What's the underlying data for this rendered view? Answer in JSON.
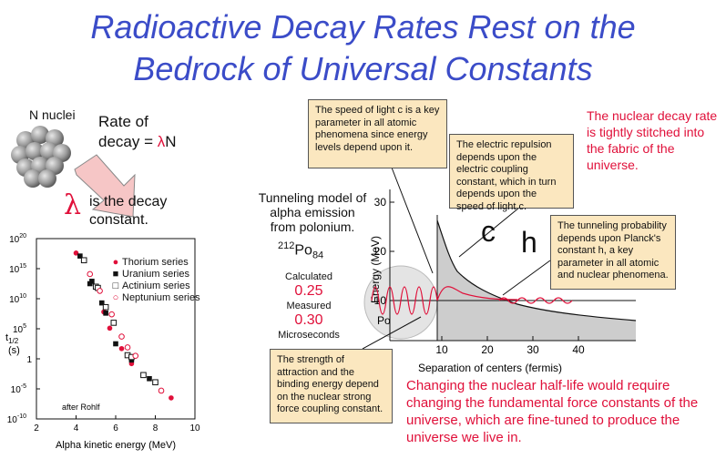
{
  "title_line1": "Radioactive Decay Rates Rest on the",
  "title_line2": "Bedrock  of Universal Constants",
  "nuclei_label": "N nuclei",
  "rate_line1": "Rate of",
  "rate_line2_prefix": "decay = ",
  "rate_lambda": "λ",
  "rate_N": "N",
  "lambda_symbol": "λ",
  "lambda_text_line1": "is the decay",
  "lambda_text_line2": "constant.",
  "box_light": "The speed of light c is a key parameter in all atomic phenomena since energy levels depend upon it.",
  "box_electric": "The electric repulsion depends upon the electric coupling constant, which in turn depends upon the speed of light c.",
  "box_planck": "The tunneling probability depends upon Planck's constant h, a key parameter in all atomic and nuclear phenomena.",
  "box_strong": "The strength of attraction and the binding energy depend on the nuclear strong force coupling constant.",
  "nuclear_rate_text": "The nuclear decay rate is tightly stitched into the fabric of the universe.",
  "bottom_text": "Changing the nuclear half-life would require changing the fundamental force constants of the universe, which are fine-tuned to produce the universe we live in.",
  "tunneling_title_line1": "Tunneling model of",
  "tunneling_title_line2": "alpha emission",
  "tunneling_title_line3": "from polonium.",
  "po_mass": "212",
  "po_symbol": "Po",
  "po_z": "84",
  "calculated_label": "Calculated",
  "calculated_value": "0.25",
  "measured_label": "Measured",
  "measured_value": "0.30",
  "microseconds_label": "Microseconds",
  "letter_c": "c",
  "letter_h": "h",
  "po_circle_label": "Po",
  "colors": {
    "title_blue": "#3b4cc8",
    "red": "#e0103a",
    "box_fill": "#fbe7bf",
    "shade_gray": "#c8c8c8"
  },
  "energy_chart": {
    "ylabel": "Energy (MeV)",
    "xlabel": "Separation of centers (fermis)",
    "x_ticks": [
      "10",
      "20",
      "30",
      "40"
    ],
    "y_ticks": [
      "10",
      "20",
      "30"
    ],
    "alpha_energy_line": "10"
  },
  "chart_data": {
    "type": "scatter",
    "title": "",
    "xlabel": "Alpha kinetic energy (MeV)",
    "ylabel_main": "t",
    "ylabel_sub": "1/2",
    "ylabel_unit": "(s)",
    "xlim": [
      2,
      10
    ],
    "ylim_log10": [
      -10,
      20
    ],
    "x_ticks": [
      "2",
      "4",
      "6",
      "8",
      "10"
    ],
    "y_ticks": [
      {
        "base": "10",
        "exp": "20",
        "log": 20
      },
      {
        "base": "10",
        "exp": "15",
        "log": 15
      },
      {
        "base": "10",
        "exp": "10",
        "log": 10
      },
      {
        "base": "10",
        "exp": "5",
        "log": 5
      },
      {
        "base": "1",
        "exp": "",
        "log": 0
      },
      {
        "base": "10",
        "exp": "-5",
        "log": -5
      },
      {
        "base": "10",
        "exp": "-10",
        "log": -10
      }
    ],
    "annotation": "after Rohlf",
    "legend_position": "top-right",
    "series": [
      {
        "name": "Thorium series",
        "marker": "filled-circle",
        "color": "#e0103a",
        "points": [
          [
            4.0,
            17.6
          ],
          [
            5.4,
            7.8
          ],
          [
            5.7,
            5.1
          ],
          [
            6.3,
            1.7
          ],
          [
            6.8,
            -0.8
          ],
          [
            8.8,
            -6.5
          ]
        ]
      },
      {
        "name": "Uranium series",
        "marker": "filled-square",
        "color": "#111111",
        "points": [
          [
            4.2,
            17.1
          ],
          [
            4.8,
            12.9
          ],
          [
            4.7,
            12.5
          ],
          [
            5.3,
            9.3
          ],
          [
            5.5,
            7.6
          ],
          [
            6.0,
            2.5
          ],
          [
            6.8,
            -0.2
          ],
          [
            7.7,
            -3.3
          ]
        ]
      },
      {
        "name": "Actinium series",
        "marker": "open-square",
        "color": "#111111",
        "points": [
          [
            4.4,
            16.4
          ],
          [
            5.0,
            12.0
          ],
          [
            5.1,
            11.8
          ],
          [
            5.5,
            8.6
          ],
          [
            5.9,
            6.0
          ],
          [
            6.6,
            0.6
          ],
          [
            6.8,
            0.3
          ],
          [
            7.4,
            -2.7
          ],
          [
            8.0,
            -3.9
          ]
        ]
      },
      {
        "name": "Neptunium series",
        "marker": "open-circle",
        "color": "#e0103a",
        "points": [
          [
            4.7,
            14.1
          ],
          [
            5.2,
            11.3
          ],
          [
            5.8,
            7.4
          ],
          [
            6.3,
            3.7
          ],
          [
            6.6,
            1.9
          ],
          [
            7.0,
            0.5
          ],
          [
            8.3,
            -5.3
          ]
        ]
      }
    ]
  }
}
